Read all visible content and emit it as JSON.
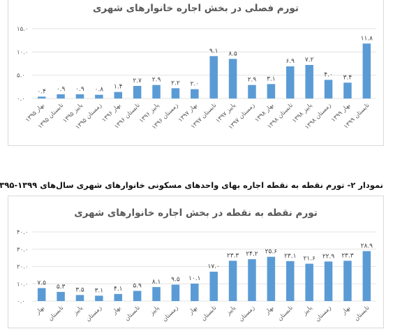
{
  "caption": "نمودار ۲- تورم نقطه به نقطه اجاره بهای واحدهای مسکونی خانوارهای شهری سال‌های ۱۳۹۹-۱۳۹۵",
  "chart_data": [
    {
      "type": "bar",
      "title": "تورم فصلی در بخش اجاره خانوارهای شهری",
      "categories": [
        "بهار ۱۳۹۵",
        "تابستان ۱۳۹۵",
        "پاییز ۱۳۹۵",
        "زمستان ۱۳۹۵",
        "بهار ۱۳۹۶",
        "تابستان ۱۳۹۶",
        "پاییز ۱۳۹۶",
        "زمستان ۱۳۹۶",
        "بهار ۱۳۹۷",
        "تابستان ۱۳۹۷",
        "پاییز ۱۳۹۷",
        "زمستان ۱۳۹۷",
        "بهار ۱۳۹۸",
        "تابستان ۱۳۹۸",
        "پاییز ۱۳۹۸",
        "زمستان ۱۳۹۸",
        "بهار ۱۳۹۹",
        "تابستان ۱۳۹۹"
      ],
      "values": [
        0.4,
        0.9,
        0.9,
        0.8,
        1.4,
        2.7,
        2.9,
        2.2,
        2.0,
        9.1,
        8.5,
        2.9,
        3.1,
        6.9,
        7.2,
        4.0,
        3.4,
        11.8
      ],
      "value_labels": [
        "۰.۴",
        "۰.۹",
        "۰.۹",
        "۰.۸",
        "۱.۴",
        "۲.۷",
        "۲.۹",
        "۲.۲",
        "۲.۰",
        "۹.۱",
        "۸.۵",
        "۲.۹",
        "۳.۱",
        "۶.۹",
        "۷.۲",
        "۴.۰",
        "۳.۴",
        "۱۱.۸"
      ],
      "ylim": [
        0,
        15
      ],
      "yticks": [
        0,
        5,
        10,
        15
      ],
      "ytick_labels": [
        "۰.۰",
        "۵.۰",
        "۱۰.۰",
        "۱۵.۰"
      ],
      "grid": true,
      "color": "#5b9bd5"
    },
    {
      "type": "bar",
      "title": "تورم نقطه به نقطه در بخش اجاره خانوارهای شهری",
      "categories": [
        "بهار",
        "تابستان",
        "پاییز",
        "زمستان",
        "بهار",
        "تابستان",
        "پاییز",
        "زمستان",
        "بهار",
        "تابستان",
        "پاییز",
        "زمستان",
        "بهار",
        "تابستان",
        "پاییز",
        "زمستان",
        "بهار",
        "تابستان"
      ],
      "values": [
        7.5,
        5.3,
        3.5,
        3.1,
        4.1,
        5.9,
        8.1,
        9.5,
        10.1,
        17.0,
        23.3,
        24.2,
        25.6,
        23.1,
        21.6,
        22.9,
        23.3,
        28.9
      ],
      "value_labels": [
        "۷.۵",
        "۵.۳",
        "۳.۵",
        "۳.۱",
        "۴.۱",
        "۵.۹",
        "۸.۱",
        "۹.۵",
        "۱۰.۱",
        "۱۷.۰",
        "۲۳.۳",
        "۲۴.۲",
        "۲۵.۶",
        "۲۳.۱",
        "۲۱.۶",
        "۲۲.۹",
        "۲۳.۳",
        "۲۸.۹"
      ],
      "ylim": [
        0,
        40
      ],
      "yticks": [
        0,
        10,
        20,
        30,
        40
      ],
      "ytick_labels": [
        "۰.۰",
        "۱۰.۰",
        "۲۰.۰",
        "۳۰.۰",
        "۴۰.۰"
      ],
      "grid": true,
      "color": "#5b9bd5"
    }
  ]
}
